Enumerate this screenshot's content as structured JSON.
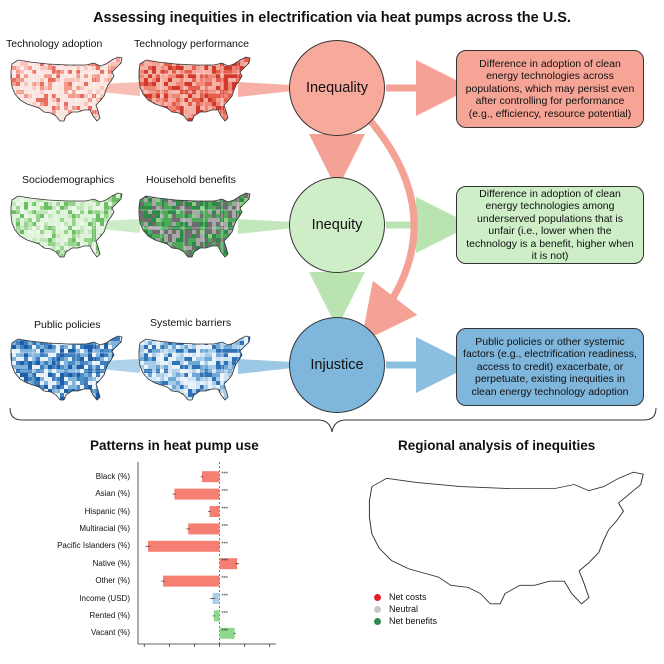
{
  "title": "Assessing inequities in electrification via heat pumps across the U.S.",
  "rows": [
    {
      "maps": [
        {
          "label": "Technology adoption",
          "theme": "red-light",
          "icon": "us-map-icon"
        },
        {
          "label": "Technology performance",
          "theme": "red-dark",
          "icon": "us-map-icon"
        }
      ],
      "concept": "Inequality",
      "definition": "Difference in adoption of clean energy technologies across populations, which may persist even after controlling for performance (e.g., efficiency, resource potential)",
      "fill": "#f7a99c",
      "box_fill": "#f6a496",
      "arrow": "#f4a295"
    },
    {
      "maps": [
        {
          "label": "Sociodemographics",
          "theme": "green-light",
          "icon": "us-map-icon"
        },
        {
          "label": "Household benefits",
          "theme": "green-dark",
          "icon": "us-map-icon"
        }
      ],
      "concept": "Inequity",
      "definition": "Difference in adoption of clean energy technologies among underserved populations that is unfair (i.e., lower when the technology is a benefit, higher when it is not)",
      "fill": "#cdeec7",
      "box_fill": "#cdeec7",
      "arrow": "#b9e3b0"
    },
    {
      "maps": [
        {
          "label": "Public policies",
          "theme": "blue-dark",
          "icon": "us-map-icon"
        },
        {
          "label": "Systemic barriers",
          "theme": "blue-light",
          "icon": "us-map-icon"
        }
      ],
      "concept": "Injustice",
      "definition": "Public policies or other systemic factors (e.g., electrification readiness, access to credit) exacerbate, or perpetuate, existing inequities in clean energy technology adoption",
      "fill": "#7fb6dc",
      "box_fill": "#7fb6dc",
      "arrow": "#8abfe0"
    }
  ],
  "patterns": {
    "title": "Patterns in heat pump use",
    "chart_data": {
      "type": "bar",
      "orientation": "horizontal",
      "categories": [
        "Black (%)",
        "Asian (%)",
        "Hispanic (%)",
        "Multiracial (%)",
        "Pacific Islanders (%)",
        "Native (%)",
        "Other (%)",
        "Income (USD)",
        "Rented (%)",
        "Vacant (%)"
      ],
      "values": [
        -1.4,
        -3.6,
        -0.8,
        -2.5,
        -5.7,
        1.4,
        -4.5,
        -0.55,
        -0.45,
        1.2
      ],
      "errors": [
        0.1,
        0.15,
        0.1,
        0.15,
        0.2,
        0.15,
        0.15,
        0.2,
        0.1,
        0.1
      ],
      "significance": [
        "***",
        "***",
        "***",
        "***",
        "***",
        "***",
        "***",
        "***",
        "***",
        "***"
      ],
      "colors": [
        "#f47f72",
        "#f47f72",
        "#f47f72",
        "#f47f72",
        "#f47f72",
        "#f47f72",
        "#f47f72",
        "#a9cfe8",
        "#8dd88a",
        "#8dd88a"
      ],
      "xlim": [
        -6.5,
        4.5
      ],
      "grid": false
    }
  },
  "regional": {
    "title": "Regional analysis of inequities",
    "legend": [
      {
        "label": "Net costs",
        "color": "#e0202a"
      },
      {
        "label": "Neutral",
        "color": "#c8c8c8"
      },
      {
        "label": "Net benefits",
        "color": "#2e8b4e"
      }
    ]
  }
}
